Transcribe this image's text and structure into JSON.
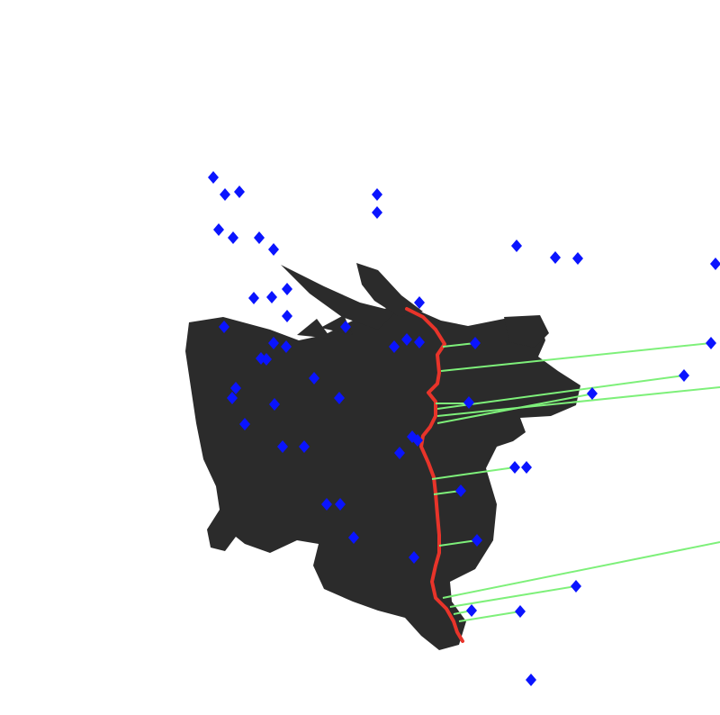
{
  "scene": {
    "background_color": "#ffffff",
    "object_color": "#2b2b2b",
    "silhouette_curve_color": "#e8342a",
    "match_line_color": "#7ef07a",
    "keypoint_color": "#0a14ff",
    "icons": [
      "dragon-silhouette",
      "keypoint-marker"
    ]
  }
}
